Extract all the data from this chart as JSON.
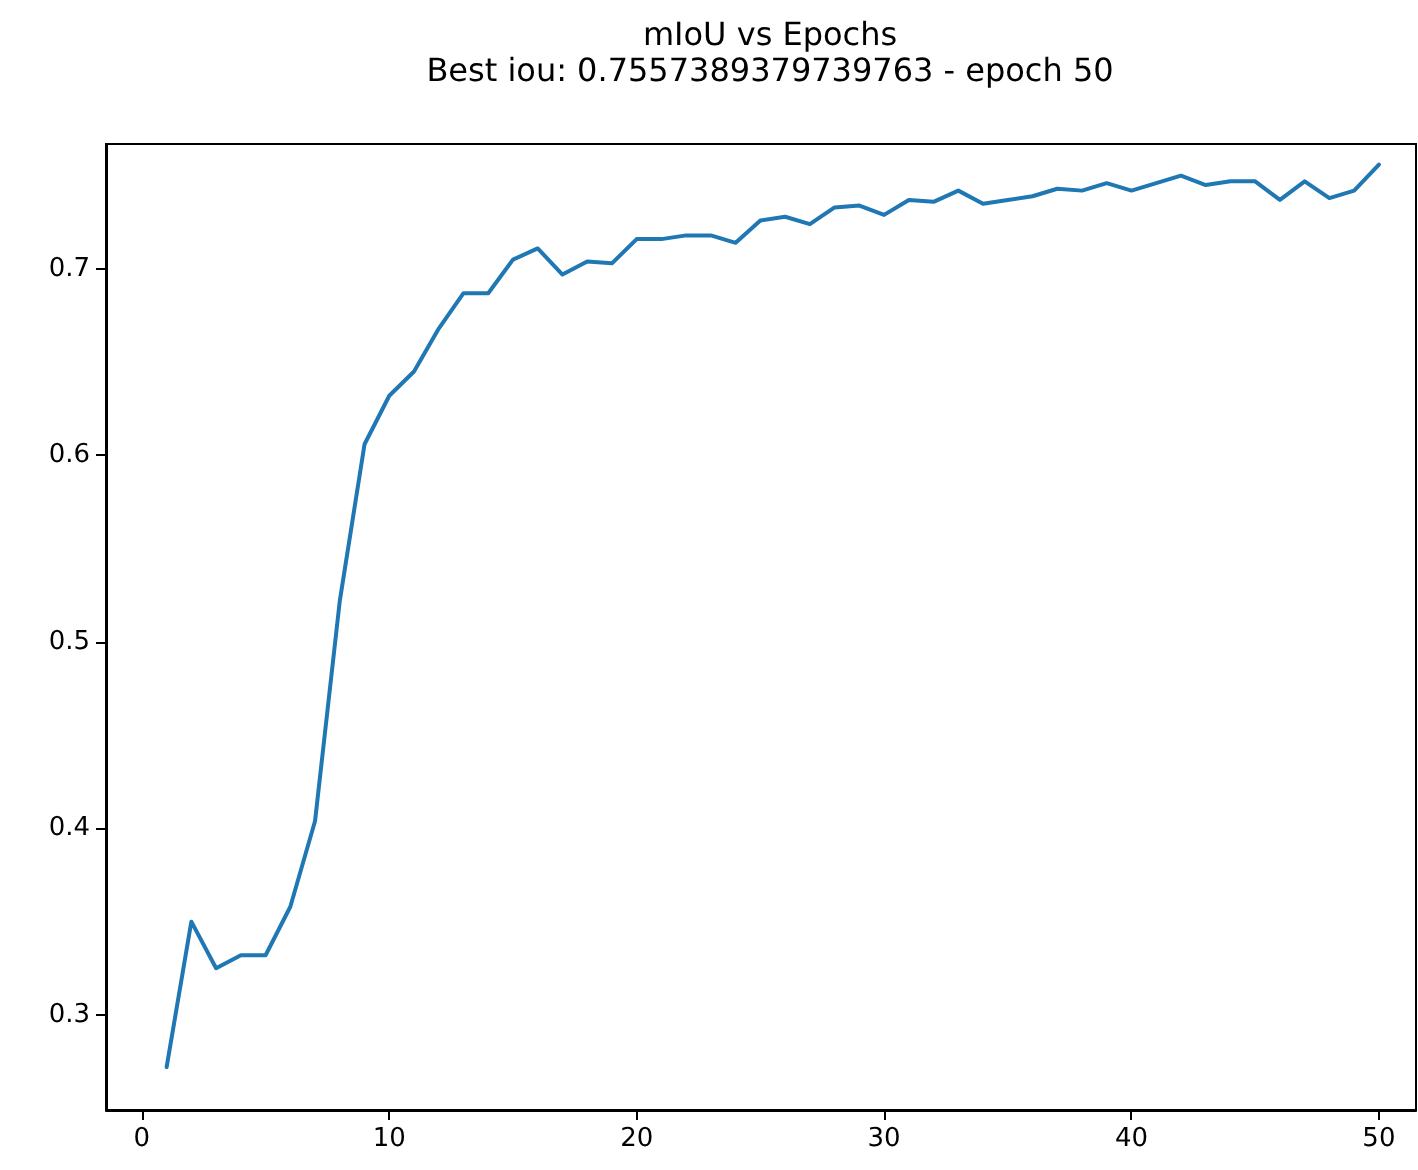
{
  "chart_data": {
    "type": "line",
    "title": "mIoU vs Epochs",
    "subtitle": "Best iou: 0.7557389379739763 - epoch 50",
    "x": [
      1,
      2,
      3,
      4,
      5,
      6,
      7,
      8,
      9,
      10,
      11,
      12,
      13,
      14,
      15,
      16,
      17,
      18,
      19,
      20,
      21,
      22,
      23,
      24,
      25,
      26,
      27,
      28,
      29,
      30,
      31,
      32,
      33,
      34,
      35,
      36,
      37,
      38,
      39,
      40,
      41,
      42,
      43,
      44,
      45,
      46,
      47,
      48,
      49,
      50
    ],
    "series": [
      {
        "color": "#1f77b4",
        "values": [
          0.272,
          0.35,
          0.325,
          0.332,
          0.332,
          0.358,
          0.404,
          0.522,
          0.606,
          0.632,
          0.645,
          0.668,
          0.687,
          0.687,
          0.705,
          0.711,
          0.697,
          0.704,
          0.703,
          0.716,
          0.716,
          0.718,
          0.718,
          0.714,
          0.726,
          0.728,
          0.724,
          0.733,
          0.734,
          0.729,
          0.737,
          0.736,
          0.742,
          0.735,
          0.737,
          0.739,
          0.743,
          0.742,
          0.746,
          0.742,
          0.746,
          0.75,
          0.745,
          0.747,
          0.747,
          0.737,
          0.747,
          0.738,
          0.742,
          0.756
        ]
      }
    ],
    "xlim": [
      -1.45,
      51.5
    ],
    "xticks": [
      0,
      10,
      20,
      30,
      40,
      50
    ],
    "ylim": [
      0.249,
      0.767
    ],
    "yticks": [
      0.3,
      0.4,
      0.5,
      0.6,
      0.7
    ],
    "grid": false,
    "marker": "none",
    "line_style": "solid"
  }
}
